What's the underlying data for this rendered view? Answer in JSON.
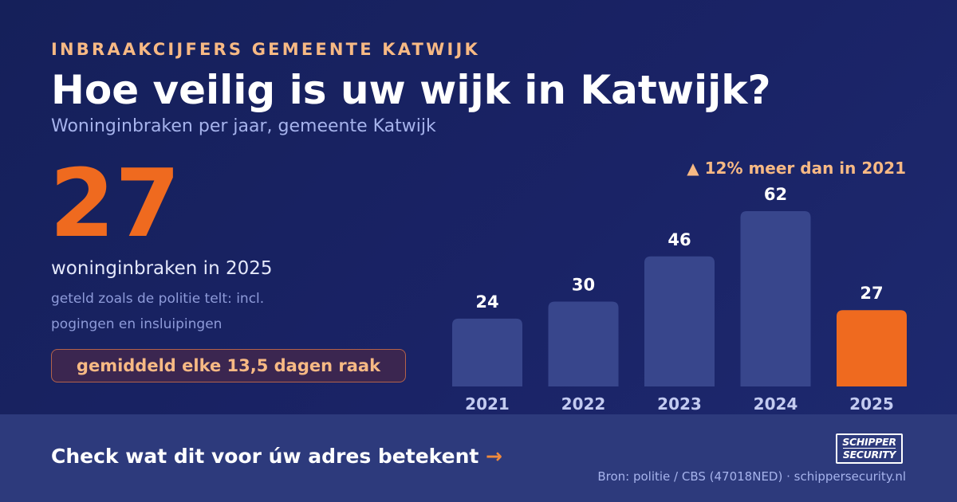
{
  "header": {
    "eyebrow": "INBRAAKCIJFERS GEMEENTE KATWIJK",
    "title": "Hoe veilig is uw wijk in Katwijk?",
    "subtitle": "Woninginbraken per jaar, gemeente Katwijk"
  },
  "highlight": {
    "number": "27",
    "caption": "woninginbraken in 2025",
    "note_line1": "geteld zoals de politie telt: incl.",
    "note_line2": "pogingen en insluipingen",
    "frequency": "gemiddeld elke 13,5 dagen raak",
    "delta": "▲ 12% meer dan in 2021"
  },
  "chart_data": {
    "type": "bar",
    "categories": [
      "2021",
      "2022",
      "2023",
      "2024",
      "2025"
    ],
    "values": [
      24,
      30,
      46,
      62,
      27
    ],
    "data_labels": [
      "24",
      "30",
      "46",
      "62",
      "27"
    ],
    "title": "Woninginbraken per jaar, gemeente Katwijk",
    "xlabel": "",
    "ylabel": "",
    "ylim": [
      0,
      62
    ],
    "grid": false,
    "legend": "none",
    "highlight_index": 4,
    "colors": {
      "bar": "#38468c",
      "highlight": "#ef6a1f",
      "label": "#ffffff",
      "tick": "#c3cbf0"
    }
  },
  "footer": {
    "cta": "Check wat dit voor úw adres betekent",
    "cta_arrow": "→",
    "logo_line1": "SCHIPPER",
    "logo_line2": "SECURITY",
    "source": "Bron: politie / CBS (47018NED) · schippersecurity.nl"
  }
}
